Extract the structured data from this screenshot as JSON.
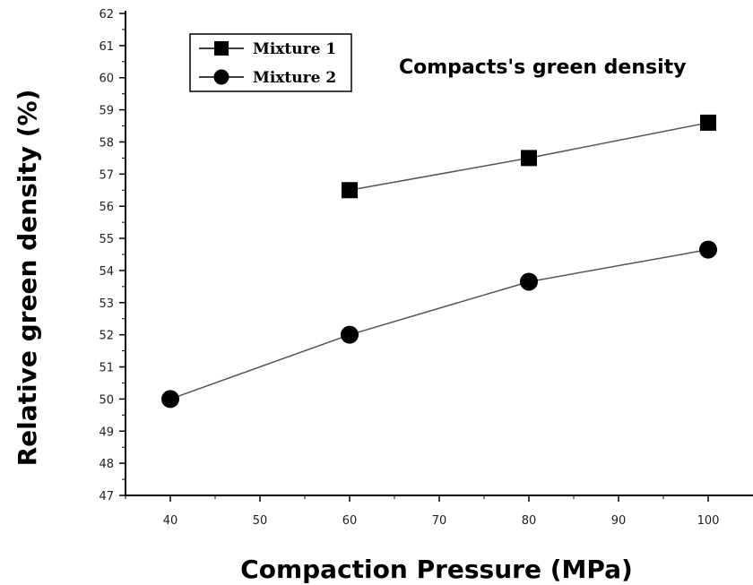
{
  "chart_data": {
    "type": "line",
    "title": "Compacts's green density",
    "xlabel": "Compaction Pressure (MPa)",
    "ylabel": "Relative green density (%)",
    "xlim": [
      35,
      105
    ],
    "ylim": [
      47,
      62
    ],
    "x_ticks": [
      40,
      50,
      60,
      70,
      80,
      90,
      100
    ],
    "y_ticks": [
      47,
      48,
      49,
      50,
      51,
      52,
      53,
      54,
      55,
      56,
      57,
      58,
      59,
      60,
      61,
      62
    ],
    "legend_position": "top-left",
    "series": [
      {
        "name": "Mixture 1",
        "marker": "square",
        "x": [
          60,
          80,
          100
        ],
        "y": [
          56.5,
          57.5,
          58.6
        ]
      },
      {
        "name": "Mixture 2",
        "marker": "circle",
        "x": [
          40,
          60,
          80,
          100
        ],
        "y": [
          50.0,
          52.0,
          53.65,
          54.65
        ]
      }
    ]
  }
}
